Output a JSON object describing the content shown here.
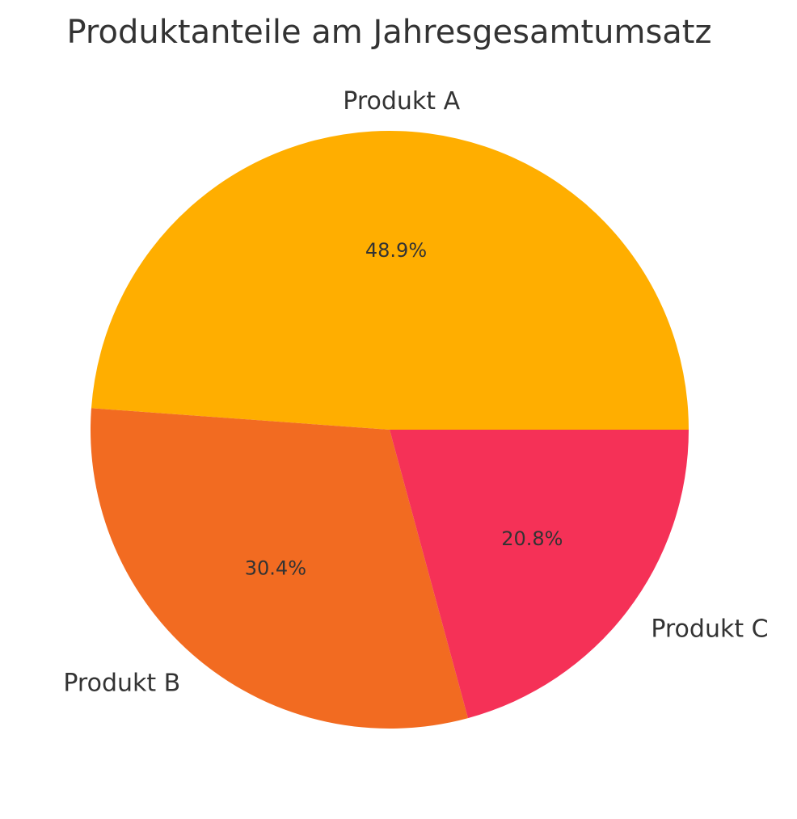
{
  "chart_data": {
    "type": "pie",
    "title": "Produktanteile am Jahresgesamtumsatz",
    "categories": [
      "Produkt A",
      "Produkt B",
      "Produkt C"
    ],
    "values": [
      48.9,
      30.4,
      20.8
    ],
    "value_labels": [
      "48.9%",
      "30.4%",
      "20.8%"
    ],
    "colors": [
      "#FFAE00",
      "#F26B21",
      "#F53157"
    ],
    "start_angle_deg": 0,
    "direction": "counterclockwise",
    "legend": "none"
  }
}
